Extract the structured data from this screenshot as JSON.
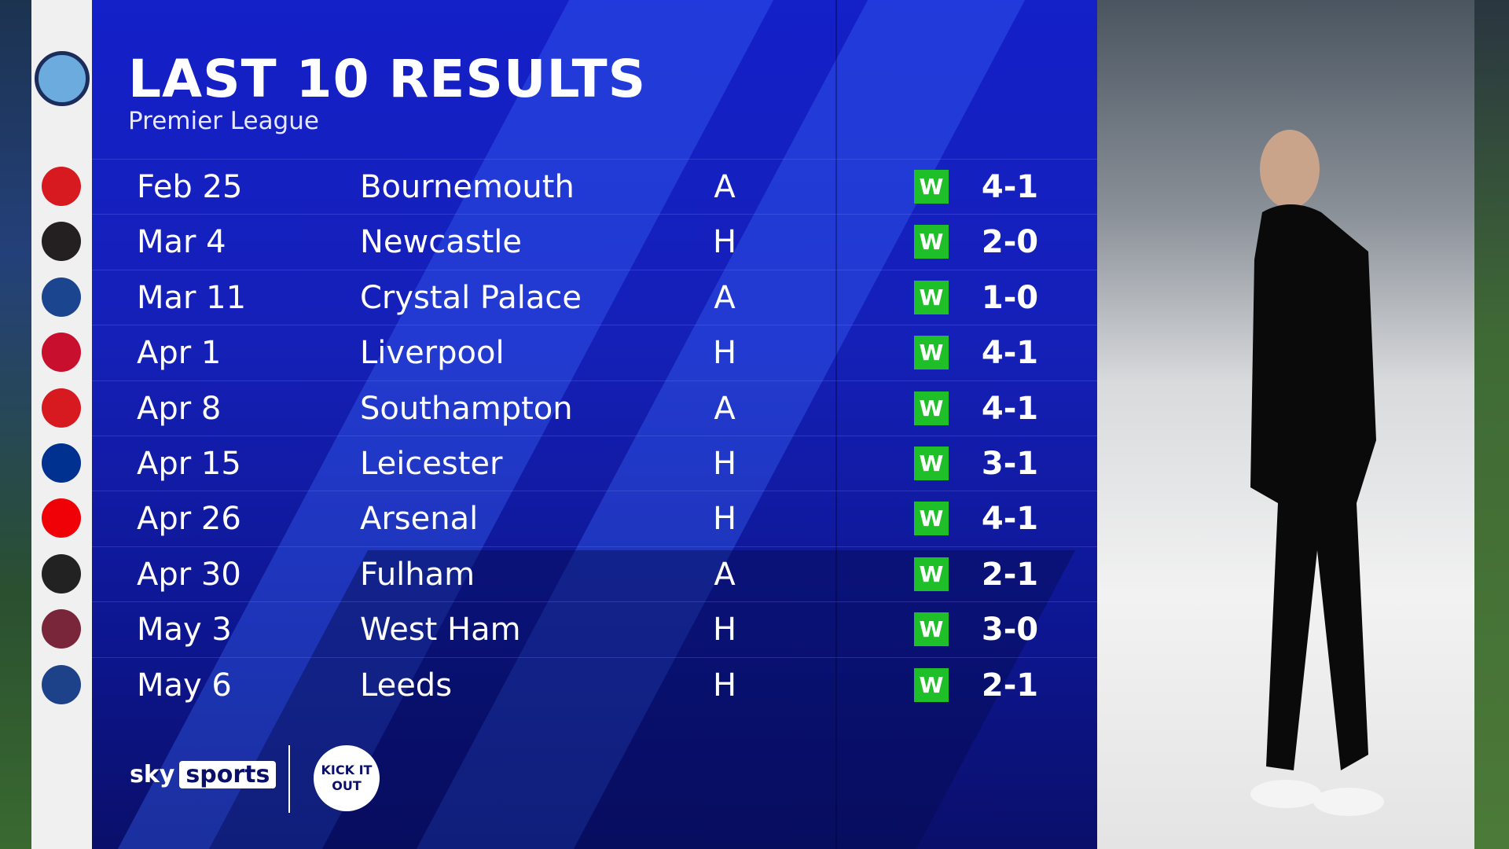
{
  "header": {
    "title": "LAST 10 RESULTS",
    "subtitle": "Premier League"
  },
  "team_crest": "manchester-city-crest",
  "colors": {
    "panel": "#1420c8",
    "win": "#1fbf2a"
  },
  "results": [
    {
      "date": "Feb 25",
      "opponent": "Bournemouth",
      "venue": "A",
      "result": "W",
      "score": "4-1",
      "crest_color": "#d71920"
    },
    {
      "date": "Mar 4",
      "opponent": "Newcastle",
      "venue": "H",
      "result": "W",
      "score": "2-0",
      "crest_color": "#241f20"
    },
    {
      "date": "Mar 11",
      "opponent": "Crystal Palace",
      "venue": "A",
      "result": "W",
      "score": "1-0",
      "crest_color": "#1b458f"
    },
    {
      "date": "Apr 1",
      "opponent": "Liverpool",
      "venue": "H",
      "result": "W",
      "score": "4-1",
      "crest_color": "#c8102e"
    },
    {
      "date": "Apr 8",
      "opponent": "Southampton",
      "venue": "A",
      "result": "W",
      "score": "4-1",
      "crest_color": "#d71920"
    },
    {
      "date": "Apr 15",
      "opponent": "Leicester",
      "venue": "H",
      "result": "W",
      "score": "3-1",
      "crest_color": "#003090"
    },
    {
      "date": "Apr 26",
      "opponent": "Arsenal",
      "venue": "H",
      "result": "W",
      "score": "4-1",
      "crest_color": "#ef0107"
    },
    {
      "date": "Apr 30",
      "opponent": "Fulham",
      "venue": "A",
      "result": "W",
      "score": "2-1",
      "crest_color": "#222222"
    },
    {
      "date": "May 3",
      "opponent": "West Ham",
      "venue": "H",
      "result": "W",
      "score": "3-0",
      "crest_color": "#7a263a"
    },
    {
      "date": "May 6",
      "opponent": "Leeds",
      "venue": "H",
      "result": "W",
      "score": "2-1",
      "crest_color": "#1d428a"
    }
  ],
  "footer": {
    "sky": "sky",
    "sports": "sports",
    "partner": "KICK IT OUT"
  }
}
